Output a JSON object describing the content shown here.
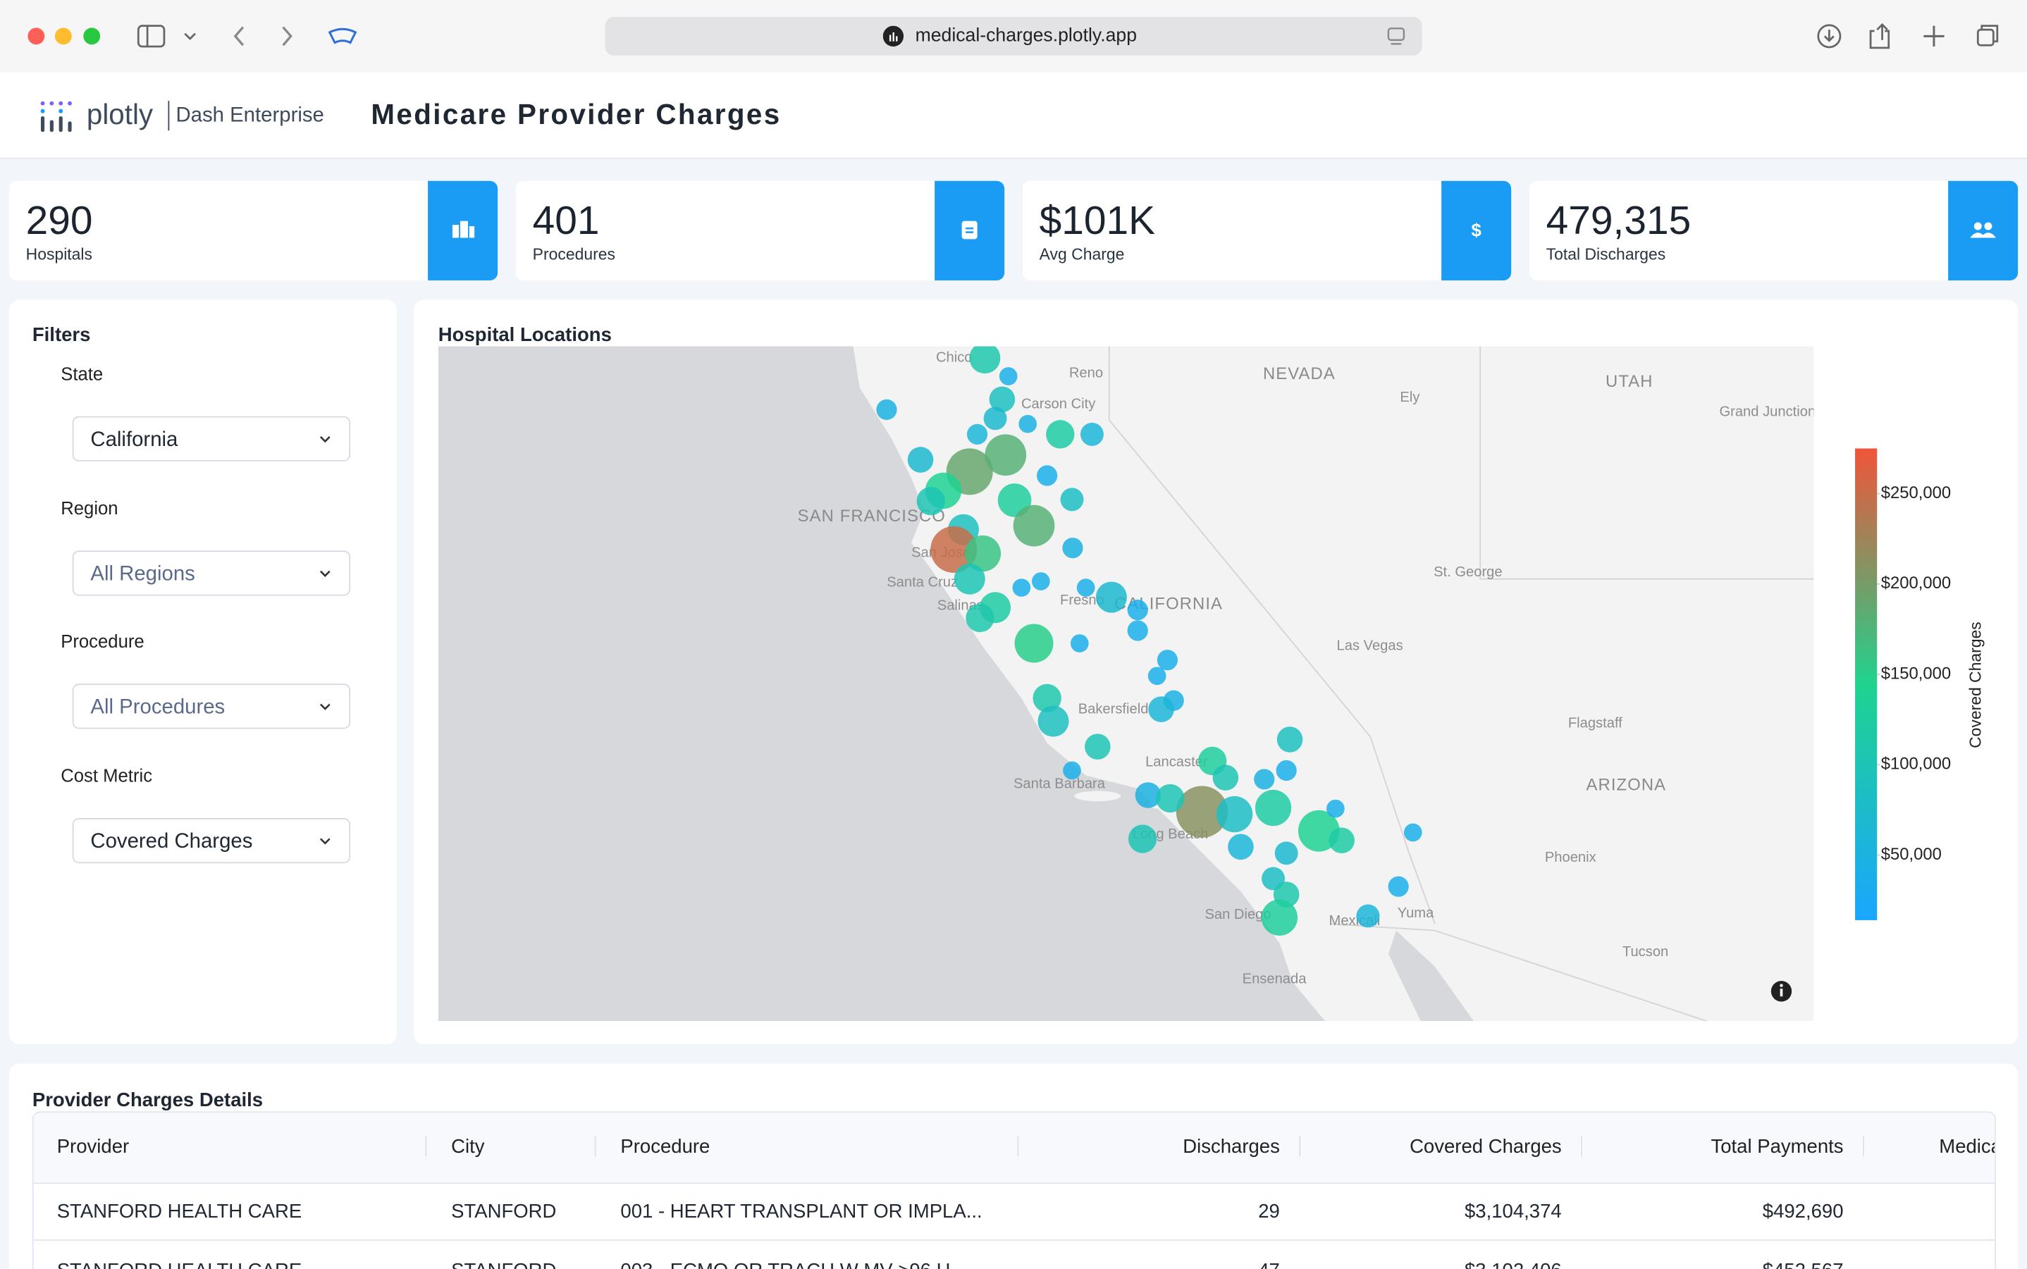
{
  "browser": {
    "url": "medical-charges.plotly.app"
  },
  "header": {
    "logo": "plotly",
    "product": "Dash Enterprise",
    "title": "Medicare Provider Charges"
  },
  "kpis": [
    {
      "value": "290",
      "label": "Hospitals"
    },
    {
      "value": "401",
      "label": "Procedures"
    },
    {
      "value": "$101K",
      "label": "Avg Charge"
    },
    {
      "value": "479,315",
      "label": "Total Discharges"
    }
  ],
  "filters": {
    "title": "Filters",
    "fields": [
      {
        "label": "State",
        "value": "California"
      },
      {
        "label": "Region",
        "value": "All Regions"
      },
      {
        "label": "Procedure",
        "value": "All Procedures"
      },
      {
        "label": "Cost Metric",
        "value": "Covered Charges"
      }
    ]
  },
  "map": {
    "title": "Hospital Locations",
    "places": [
      "Chico",
      "Reno",
      "Carson City",
      "NEVADA",
      "Ely",
      "UTAH",
      "Grand Junction",
      "SAN FRANCISCO",
      "San Jose",
      "Santa Cruz",
      "Salinas",
      "Fresno",
      "CALIFORNIA",
      "St. George",
      "Las Vegas",
      "Bakersfield",
      "Flagstaff",
      "Lancaster",
      "Santa Barbara",
      "ARIZONA",
      "Long Beach",
      "Phoenix",
      "San Diego",
      "Mexicali",
      "Yuma",
      "Tucson",
      "Ensenada"
    ],
    "points": [
      {
        "lon": -120.61,
        "lat": 39.77,
        "charges": 110000,
        "discharges": 100
      },
      {
        "lon": -120.27,
        "lat": 39.54,
        "charges": 40000,
        "discharges": 34
      },
      {
        "lon": -122.03,
        "lat": 39.12,
        "charges": 50000,
        "discharges": 44
      },
      {
        "lon": -120.36,
        "lat": 39.25,
        "charges": 90000,
        "discharges": 69
      },
      {
        "lon": -120.46,
        "lat": 39.01,
        "charges": 70000,
        "discharges": 56
      },
      {
        "lon": -119.99,
        "lat": 38.94,
        "charges": 50000,
        "discharges": 34
      },
      {
        "lon": -119.52,
        "lat": 38.81,
        "charges": 120000,
        "discharges": 84
      },
      {
        "lon": -119.06,
        "lat": 38.81,
        "charges": 60000,
        "discharges": 56
      },
      {
        "lon": -120.72,
        "lat": 38.81,
        "charges": 60000,
        "discharges": 44
      },
      {
        "lon": -121.54,
        "lat": 38.49,
        "charges": 70000,
        "discharges": 69
      },
      {
        "lon": -120.83,
        "lat": 38.34,
        "charges": 190000,
        "discharges": 225
      },
      {
        "lon": -120.31,
        "lat": 38.55,
        "charges": 180000,
        "discharges": 178
      },
      {
        "lon": -121.21,
        "lat": 38.1,
        "charges": 140000,
        "discharges": 136
      },
      {
        "lon": -119.71,
        "lat": 38.29,
        "charges": 40000,
        "discharges": 44
      },
      {
        "lon": -120.18,
        "lat": 37.98,
        "charges": 130000,
        "discharges": 117
      },
      {
        "lon": -119.35,
        "lat": 37.99,
        "charges": 80000,
        "discharges": 56
      },
      {
        "lon": -119.9,
        "lat": 37.66,
        "charges": 180000,
        "discharges": 178
      },
      {
        "lon": -120.92,
        "lat": 37.61,
        "charges": 90000,
        "discharges": 100
      },
      {
        "lon": -121.06,
        "lat": 37.36,
        "charges": 250000,
        "discharges": 225
      },
      {
        "lon": -120.64,
        "lat": 37.31,
        "charges": 160000,
        "discharges": 136
      },
      {
        "lon": -119.34,
        "lat": 37.38,
        "charges": 50000,
        "discharges": 44
      },
      {
        "lon": -120.83,
        "lat": 36.99,
        "charges": 100000,
        "discharges": 100
      },
      {
        "lon": -120.46,
        "lat": 36.63,
        "charges": 120000,
        "discharges": 100
      },
      {
        "lon": -120.68,
        "lat": 36.5,
        "charges": 110000,
        "discharges": 84
      },
      {
        "lon": -119.8,
        "lat": 36.96,
        "charges": 40000,
        "discharges": 34
      },
      {
        "lon": -120.08,
        "lat": 36.88,
        "charges": 40000,
        "discharges": 34
      },
      {
        "lon": -119.15,
        "lat": 36.88,
        "charges": 40000,
        "discharges": 34
      },
      {
        "lon": -118.78,
        "lat": 36.76,
        "charges": 70000,
        "discharges": 100
      },
      {
        "lon": -118.4,
        "lat": 36.34,
        "charges": 40000,
        "discharges": 44
      },
      {
        "lon": -119.9,
        "lat": 36.18,
        "charges": 150000,
        "discharges": 156
      },
      {
        "lon": -119.24,
        "lat": 36.18,
        "charges": 40000,
        "discharges": 34
      },
      {
        "lon": -117.97,
        "lat": 35.97,
        "charges": 40000,
        "discharges": 44
      },
      {
        "lon": -118.12,
        "lat": 35.77,
        "charges": 40000,
        "discharges": 34
      },
      {
        "lon": -118.4,
        "lat": 36.6,
        "charges": 40000,
        "discharges": 44
      },
      {
        "lon": -117.88,
        "lat": 35.46,
        "charges": 50000,
        "discharges": 44
      },
      {
        "lon": -118.06,
        "lat": 35.35,
        "charges": 60000,
        "discharges": 69
      },
      {
        "lon": -119.71,
        "lat": 35.49,
        "charges": 110000,
        "discharges": 84
      },
      {
        "lon": -119.62,
        "lat": 35.2,
        "charges": 90000,
        "discharges": 100
      },
      {
        "lon": -118.98,
        "lat": 34.88,
        "charges": 100000,
        "discharges": 69
      },
      {
        "lon": -116.2,
        "lat": 34.97,
        "charges": 90000,
        "discharges": 69
      },
      {
        "lon": -117.32,
        "lat": 34.7,
        "charges": 130000,
        "discharges": 84
      },
      {
        "lon": -117.13,
        "lat": 34.49,
        "charges": 100000,
        "discharges": 69
      },
      {
        "lon": -116.25,
        "lat": 34.58,
        "charges": 40000,
        "discharges": 44
      },
      {
        "lon": -116.57,
        "lat": 34.47,
        "charges": 50000,
        "discharges": 44
      },
      {
        "lon": -119.35,
        "lat": 34.58,
        "charges": 40000,
        "discharges": 34
      },
      {
        "lon": -118.25,
        "lat": 34.27,
        "charges": 50000,
        "discharges": 69
      },
      {
        "lon": -117.47,
        "lat": 34.06,
        "charges": 210000,
        "discharges": 278
      },
      {
        "lon": -117.0,
        "lat": 34.03,
        "charges": 80000,
        "discharges": 136
      },
      {
        "lon": -116.44,
        "lat": 34.11,
        "charges": 120000,
        "discharges": 136
      },
      {
        "lon": -115.78,
        "lat": 33.82,
        "charges": 140000,
        "discharges": 178
      },
      {
        "lon": -115.45,
        "lat": 33.7,
        "charges": 120000,
        "discharges": 69
      },
      {
        "lon": -115.54,
        "lat": 34.1,
        "charges": 40000,
        "discharges": 34
      },
      {
        "lon": -118.33,
        "lat": 33.72,
        "charges": 100000,
        "discharges": 84
      },
      {
        "lon": -116.91,
        "lat": 33.62,
        "charges": 60000,
        "discharges": 69
      },
      {
        "lon": -116.25,
        "lat": 33.54,
        "charges": 70000,
        "discharges": 56
      },
      {
        "lon": -116.44,
        "lat": 33.22,
        "charges": 80000,
        "discharges": 56
      },
      {
        "lon": -116.25,
        "lat": 33.02,
        "charges": 110000,
        "discharges": 69
      },
      {
        "lon": -116.35,
        "lat": 32.73,
        "charges": 130000,
        "discharges": 136
      },
      {
        "lon": -114.63,
        "lat": 33.12,
        "charges": 40000,
        "discharges": 44
      },
      {
        "lon": -115.07,
        "lat": 32.75,
        "charges": 60000,
        "discharges": 56
      },
      {
        "lon": -114.42,
        "lat": 33.8,
        "charges": 40000,
        "discharges": 34
      },
      {
        "lon": -117.93,
        "lat": 34.23,
        "charges": 100000,
        "discharges": 84
      },
      {
        "lon": -121.39,
        "lat": 37.97,
        "charges": 100000,
        "discharges": 84
      }
    ],
    "colorbar": {
      "title": "Covered Charges",
      "clim": [
        14000,
        275000
      ],
      "ticks": [
        {
          "value": 50000,
          "label": "$50,000"
        },
        {
          "value": 100000,
          "label": "$100,000"
        },
        {
          "value": 150000,
          "label": "$150,000"
        },
        {
          "value": 200000,
          "label": "$200,000"
        },
        {
          "value": 250000,
          "label": "$250,000"
        }
      ]
    }
  },
  "table": {
    "title": "Provider Charges Details",
    "columns": [
      "Provider",
      "City",
      "Procedure",
      "Discharges",
      "Covered Charges",
      "Total Payments",
      "Medicare Payments"
    ],
    "rows": [
      [
        "STANFORD HEALTH CARE",
        "STANFORD",
        "001 - HEART TRANSPLANT OR IMPLA...",
        "29",
        "$3,104,374",
        "$492,690",
        ""
      ],
      [
        "STANFORD HEALTH CARE",
        "STANFORD",
        "003 - ECMO OR TRACH W MV >96 H...",
        "47",
        "$3,102,406",
        "$452,567",
        ""
      ]
    ]
  }
}
